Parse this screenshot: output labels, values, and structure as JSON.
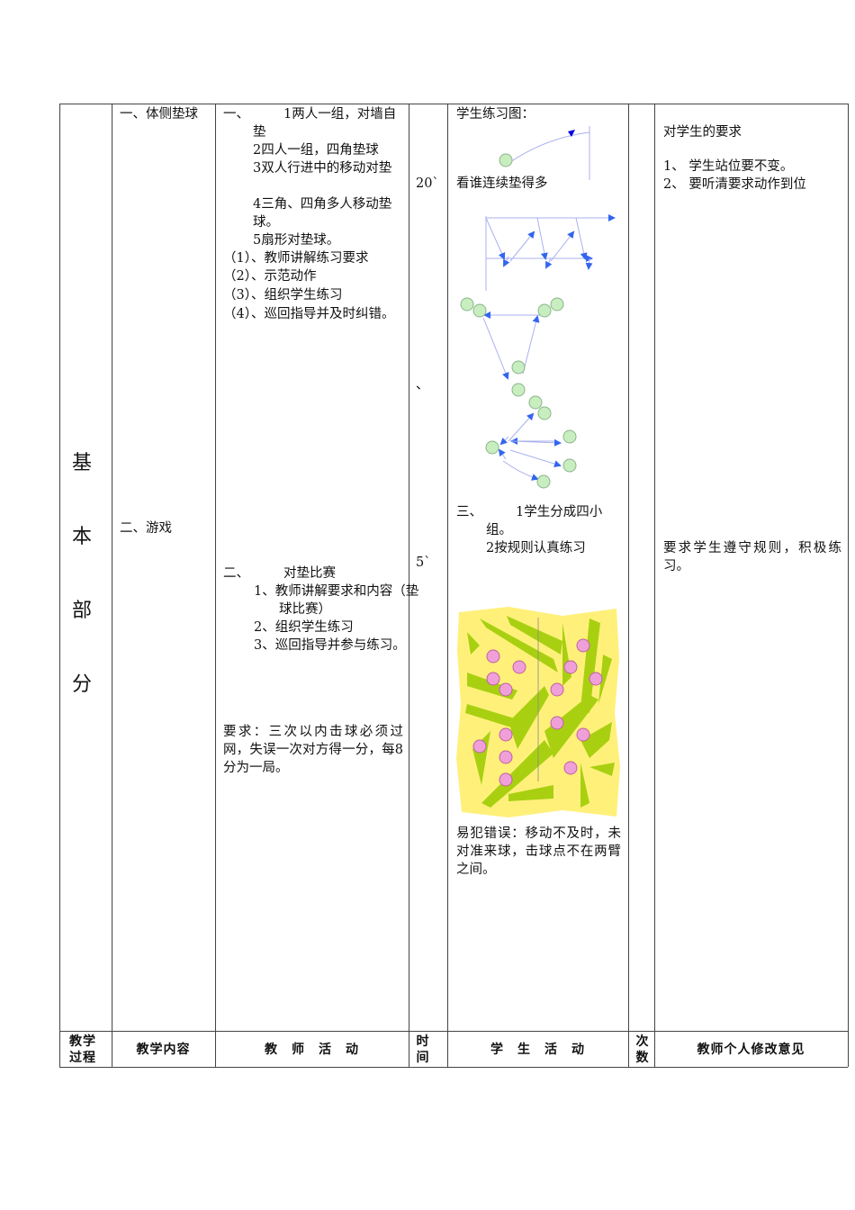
{
  "section_label": [
    "基",
    "本",
    "部",
    "分"
  ],
  "content": {
    "item1": "一、体侧垫球",
    "item2": "二、游戏"
  },
  "teacher": {
    "part1": {
      "head": "一、",
      "lines": [
        "1两人一组，对墙自垫",
        "2四人一组，四角垫球",
        "3双人行进中的移动对垫",
        "4三角、四角多人移动垫球。",
        "5扇形对垫球。"
      ],
      "steps": [
        "（1）、教师讲解练习要求",
        "（2）、示范动作",
        "（3）、组织学生练习",
        "（4）、巡回指导并及时纠错。"
      ]
    },
    "part2": {
      "head": "二、",
      "title": "对垫比赛",
      "lines": [
        "1、教师讲解要求和内容（垫球比赛）",
        "2、组织学生练习",
        "3、巡回指导并参与练习。"
      ]
    },
    "requirement": "要求：三次以内击球必须过网，失误一次对方得一分，每8分为一局。"
  },
  "time": {
    "t1": "20`",
    "mark": "、",
    "t2": "5`"
  },
  "student": {
    "title": "学生练习图：",
    "caption": "看谁连续垫得多",
    "part3_head": "三、",
    "part3_lines": [
      "1学生分成四小组。",
      "2按规则认真练习"
    ],
    "errors": "易犯错误：移动不及时，未对准来球，击球点不在两臂之间。"
  },
  "opinion": {
    "title": "对学生的要求",
    "items": [
      "1、 学生站位要不变。",
      "2、 要听清要求动作到位"
    ],
    "game_req": "要求学生遵守规则，积极练习。"
  },
  "footer": {
    "process": "教学过程",
    "content": "教学内容",
    "teacher": "教　师　活　动",
    "time": "时间",
    "student": "学　生　活　动",
    "count": "次数",
    "opinion": "教师个人修改意见"
  },
  "colors": {
    "arrow": "#3366ee",
    "player_green": "#c8eec0",
    "player_pink": "#f0a0d8",
    "court_yellow": "#fff07a",
    "court_green": "#a8d010"
  }
}
